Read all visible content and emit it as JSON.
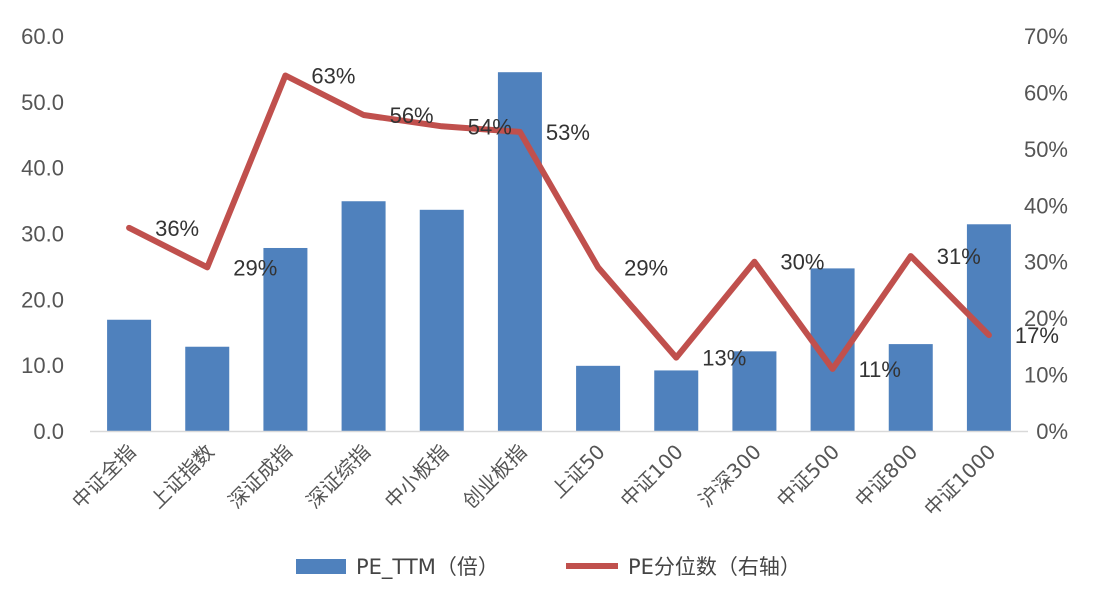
{
  "chart_data": {
    "type": "bar+line",
    "categories": [
      "中证全指",
      "上证指数",
      "深证成指",
      "深证综指",
      "中小板指",
      "创业板指",
      "上证50",
      "中证100",
      "沪深300",
      "中证500",
      "中证800",
      "中证1000"
    ],
    "series": [
      {
        "name": "PE_TTM（倍）",
        "type": "bar",
        "axis": "left",
        "color": "#4F81BD",
        "values": [
          16.9,
          12.8,
          27.8,
          34.9,
          33.6,
          54.5,
          9.9,
          9.2,
          12.1,
          24.7,
          13.2,
          31.4
        ]
      },
      {
        "name": "PE分位数（右轴）",
        "type": "line",
        "axis": "right",
        "color": "#C0504D",
        "values": [
          0.36,
          0.29,
          0.63,
          0.56,
          0.54,
          0.53,
          0.29,
          0.13,
          0.3,
          0.11,
          0.31,
          0.17
        ],
        "labels": [
          "36%",
          "29%",
          "63%",
          "56%",
          "54%",
          "53%",
          "29%",
          "13%",
          "30%",
          "11%",
          "31%",
          "17%"
        ]
      }
    ],
    "y_left": {
      "min": 0,
      "max": 60,
      "ticks": [
        "0.0",
        "10.0",
        "20.0",
        "30.0",
        "40.0",
        "50.0",
        "60.0"
      ]
    },
    "y_right": {
      "min": 0,
      "max": 0.7,
      "ticks": [
        "0%",
        "10%",
        "20%",
        "30%",
        "40%",
        "50%",
        "60%",
        "70%"
      ]
    },
    "grid": false,
    "legend": "bottom"
  }
}
